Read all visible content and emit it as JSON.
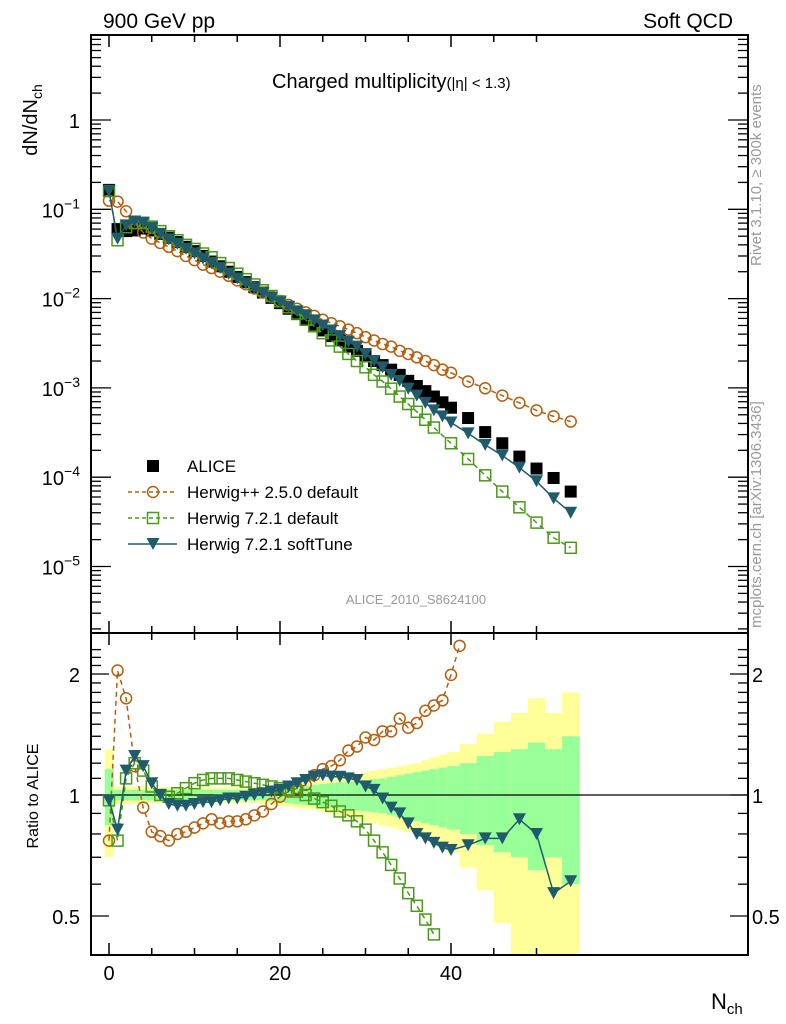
{
  "header": {
    "left_label": "900 GeV pp",
    "right_label": "Soft QCD"
  },
  "side_labels": {
    "rivet": "Rivet 3.1.10, ≥ 300k events",
    "mcplots": "mcplots.cern.ch [arXiv:1306.3436]"
  },
  "watermark": "ALICE_2010_S8624100",
  "chart_data": [
    {
      "type": "scatter",
      "panel": "main",
      "title": "Charged multiplicity",
      "title_suffix": "(|η| < 1.3)",
      "xlabel": "N_ch",
      "ylabel": "dN/dN_ch",
      "yscale": "log",
      "xlim": [
        -2,
        55
      ],
      "ylim": [
        2.5e-06,
        8
      ],
      "yticks": [
        {
          "value": 1,
          "label": "1"
        },
        {
          "value": 0.1,
          "label": "10^-1"
        },
        {
          "value": 0.01,
          "label": "10^-2"
        },
        {
          "value": 0.001,
          "label": "10^-3"
        },
        {
          "value": 0.0001,
          "label": "10^-4"
        },
        {
          "value": 1e-05,
          "label": "10^-5"
        }
      ],
      "legend_position": "lower-left",
      "series": [
        {
          "name": "ALICE",
          "marker": "filled-square",
          "line": "none",
          "color": "#000000",
          "x": [
            0,
            1,
            2,
            3,
            4,
            5,
            6,
            7,
            8,
            9,
            10,
            11,
            12,
            13,
            14,
            15,
            16,
            17,
            18,
            19,
            20,
            21,
            22,
            23,
            24,
            25,
            26,
            27,
            28,
            29,
            30,
            31,
            32,
            33,
            34,
            35,
            36,
            37,
            38,
            39,
            40,
            42,
            44,
            46,
            48,
            50,
            52,
            54
          ],
          "y": [
            0.165,
            0.06,
            0.057,
            0.058,
            0.061,
            0.058,
            0.053,
            0.048,
            0.043,
            0.038,
            0.034,
            0.03,
            0.026,
            0.023,
            0.02,
            0.0175,
            0.0153,
            0.0134,
            0.0117,
            0.0102,
            0.0089,
            0.0077,
            0.0067,
            0.0058,
            0.0051,
            0.0044,
            0.0038,
            0.0034,
            0.0029,
            0.0026,
            0.0023,
            0.002,
            0.0018,
            0.0016,
            0.0014,
            0.0012,
            0.00105,
            0.00092,
            0.0008,
            0.00069,
            0.0006,
            0.00046,
            0.00032,
            0.00024,
            0.00017,
            0.000125,
            9.8e-05,
            6.9e-05
          ]
        },
        {
          "name": "Herwig++ 2.5.0 default",
          "marker": "open-circle",
          "line": "dashed",
          "color": "#b35f0f",
          "x": [
            0,
            1,
            2,
            3,
            4,
            5,
            6,
            7,
            8,
            9,
            10,
            11,
            12,
            13,
            14,
            15,
            16,
            17,
            18,
            19,
            20,
            21,
            22,
            23,
            24,
            25,
            26,
            27,
            28,
            29,
            30,
            31,
            32,
            33,
            34,
            35,
            36,
            37,
            38,
            39,
            40,
            42,
            44,
            46,
            48,
            50,
            52,
            54
          ],
          "y": [
            0.125,
            0.122,
            0.095,
            0.07,
            0.055,
            0.047,
            0.042,
            0.038,
            0.034,
            0.03,
            0.027,
            0.024,
            0.022,
            0.02,
            0.018,
            0.016,
            0.0145,
            0.013,
            0.0117,
            0.0105,
            0.0094,
            0.0085,
            0.0077,
            0.007,
            0.0064,
            0.0058,
            0.0053,
            0.0049,
            0.0045,
            0.0041,
            0.0037,
            0.0034,
            0.0031,
            0.0029,
            0.0026,
            0.0024,
            0.0022,
            0.002,
            0.0018,
            0.0016,
            0.00148,
            0.00118,
            0.00099,
            0.00082,
            0.00068,
            0.00056,
            0.00048,
            0.00042
          ]
        },
        {
          "name": "Herwig 7.2.1 default",
          "marker": "open-square",
          "line": "dashed",
          "color": "#4a9a1a",
          "x": [
            0,
            1,
            2,
            3,
            4,
            5,
            6,
            7,
            8,
            9,
            10,
            11,
            12,
            13,
            14,
            15,
            16,
            17,
            18,
            19,
            20,
            21,
            22,
            23,
            24,
            25,
            26,
            27,
            28,
            29,
            30,
            31,
            32,
            33,
            34,
            35,
            36,
            37,
            38,
            40,
            42,
            44,
            46,
            48,
            50,
            52,
            54
          ],
          "y": [
            0.16,
            0.045,
            0.063,
            0.07,
            0.07,
            0.064,
            0.057,
            0.05,
            0.045,
            0.04,
            0.036,
            0.032,
            0.029,
            0.025,
            0.022,
            0.019,
            0.0165,
            0.0144,
            0.0124,
            0.0107,
            0.0093,
            0.008,
            0.0068,
            0.0058,
            0.0049,
            0.0041,
            0.0034,
            0.0029,
            0.0024,
            0.002,
            0.0017,
            0.0014,
            0.00118,
            0.00098,
            0.0008,
            0.00066,
            0.00054,
            0.00044,
            0.00036,
            0.00024,
            0.00016,
            0.000105,
            6.9e-05,
            4.6e-05,
            3.1e-05,
            2.1e-05,
            1.62e-05
          ]
        },
        {
          "name": "Herwig 7.2.1 softTune",
          "marker": "filled-triangle-down",
          "line": "solid",
          "color": "#1f5b6b",
          "x": [
            0,
            1,
            2,
            3,
            4,
            5,
            6,
            7,
            8,
            9,
            10,
            11,
            12,
            13,
            14,
            15,
            16,
            17,
            18,
            19,
            20,
            21,
            22,
            23,
            24,
            25,
            26,
            27,
            28,
            29,
            30,
            31,
            32,
            33,
            34,
            35,
            36,
            37,
            38,
            39,
            40,
            42,
            44,
            46,
            48,
            50,
            52,
            54
          ],
          "y": [
            0.16,
            0.047,
            0.066,
            0.073,
            0.071,
            0.062,
            0.053,
            0.046,
            0.041,
            0.036,
            0.032,
            0.028,
            0.025,
            0.022,
            0.019,
            0.0168,
            0.0148,
            0.013,
            0.0115,
            0.0102,
            0.0091,
            0.0081,
            0.0072,
            0.0065,
            0.0057,
            0.005,
            0.0044,
            0.0038,
            0.0033,
            0.0029,
            0.0024,
            0.002,
            0.0017,
            0.0014,
            0.0012,
            0.00098,
            0.00082,
            0.00068,
            0.00056,
            0.00048,
            0.00041,
            0.00031,
            0.00023,
            0.000175,
            0.000128,
            9e-05,
            5.8e-05,
            4e-05
          ]
        }
      ]
    },
    {
      "type": "scatter",
      "panel": "ratio",
      "xlabel": "N_ch",
      "ylabel": "Ratio to ALICE",
      "yscale": "log",
      "xlim": [
        -2,
        55
      ],
      "ylim": [
        0.37,
        2.35
      ],
      "xticks": [
        0,
        20,
        40
      ],
      "yticks": [
        {
          "value": 2,
          "label": "2"
        },
        {
          "value": 1,
          "label": "1"
        },
        {
          "value": 0.5,
          "label": "0.5"
        }
      ],
      "reference_line": 1,
      "bands": {
        "x_edges": [
          -0.5,
          0.5,
          1.5,
          2.5,
          3.5,
          4.5,
          5.5,
          6.5,
          7.5,
          8.5,
          9.5,
          10.5,
          11.5,
          12.5,
          13.5,
          14.5,
          15.5,
          16.5,
          17.5,
          18.5,
          19.5,
          20.5,
          21.5,
          22.5,
          23.5,
          24.5,
          25.5,
          26.5,
          27.5,
          28.5,
          29.5,
          30.5,
          31.5,
          32.5,
          33.5,
          34.5,
          35.5,
          36.5,
          37.5,
          38.5,
          39.5,
          41,
          43,
          45,
          47,
          49,
          51,
          53,
          55
        ],
        "stat_halfwidth": [
          0.16,
          0.03,
          0.03,
          0.03,
          0.03,
          0.03,
          0.03,
          0.03,
          0.03,
          0.03,
          0.03,
          0.03,
          0.03,
          0.03,
          0.03,
          0.03,
          0.03,
          0.03,
          0.03,
          0.035,
          0.04,
          0.045,
          0.05,
          0.055,
          0.06,
          0.065,
          0.07,
          0.075,
          0.08,
          0.085,
          0.09,
          0.095,
          0.1,
          0.11,
          0.12,
          0.13,
          0.14,
          0.15,
          0.16,
          0.17,
          0.18,
          0.2,
          0.25,
          0.28,
          0.3,
          0.35,
          0.3,
          0.4
        ],
        "total_halfwidth": [
          0.3,
          0.05,
          0.05,
          0.05,
          0.05,
          0.045,
          0.045,
          0.045,
          0.045,
          0.045,
          0.045,
          0.045,
          0.045,
          0.045,
          0.045,
          0.045,
          0.045,
          0.045,
          0.05,
          0.055,
          0.06,
          0.065,
          0.07,
          0.075,
          0.08,
          0.09,
          0.1,
          0.11,
          0.12,
          0.13,
          0.14,
          0.15,
          0.16,
          0.17,
          0.18,
          0.19,
          0.2,
          0.22,
          0.24,
          0.26,
          0.28,
          0.34,
          0.42,
          0.52,
          0.6,
          0.74,
          0.6,
          0.8
        ],
        "stat_color": "#99ff99",
        "total_color": "#ffff99"
      },
      "series": [
        {
          "name": "Herwig++ 2.5.0 default",
          "color": "#b35f0f",
          "x": [
            0,
            1,
            2,
            3,
            4,
            5,
            6,
            7,
            8,
            9,
            10,
            11,
            12,
            13,
            14,
            15,
            16,
            17,
            18,
            19,
            20,
            21,
            22,
            23,
            24,
            25,
            26,
            27,
            28,
            29,
            30,
            31,
            32,
            33,
            34,
            35,
            36,
            37,
            38,
            39,
            40,
            41
          ],
          "y": [
            0.77,
            2.04,
            1.74,
            1.18,
            0.93,
            0.81,
            0.79,
            0.77,
            0.8,
            0.81,
            0.83,
            0.85,
            0.87,
            0.85,
            0.86,
            0.86,
            0.87,
            0.89,
            0.91,
            0.95,
            0.99,
            1.02,
            1.04,
            1.06,
            1.12,
            1.16,
            1.18,
            1.22,
            1.29,
            1.32,
            1.39,
            1.37,
            1.44,
            1.44,
            1.55,
            1.47,
            1.51,
            1.62,
            1.67,
            1.72,
            1.99,
            2.35
          ]
        },
        {
          "name": "Herwig 7.2.1 default",
          "color": "#4a9a1a",
          "x": [
            0,
            1,
            2,
            3,
            4,
            5,
            6,
            7,
            8,
            9,
            10,
            11,
            12,
            13,
            14,
            15,
            16,
            17,
            18,
            19,
            20,
            21,
            22,
            23,
            24,
            25,
            26,
            27,
            28,
            29,
            30,
            31,
            32,
            33,
            34,
            35,
            36,
            37,
            38
          ],
          "y": [
            0.97,
            0.77,
            1.1,
            1.2,
            1.15,
            1.05,
            1.0,
            0.99,
            1.01,
            1.04,
            1.07,
            1.09,
            1.1,
            1.1,
            1.1,
            1.09,
            1.08,
            1.07,
            1.06,
            1.05,
            1.04,
            1.03,
            1.02,
            1.0,
            0.98,
            0.96,
            0.94,
            0.91,
            0.89,
            0.86,
            0.82,
            0.77,
            0.72,
            0.67,
            0.62,
            0.57,
            0.53,
            0.49,
            0.45
          ]
        },
        {
          "name": "Herwig 7.2.1 softTune",
          "color": "#1f5b6b",
          "x": [
            0,
            1,
            2,
            3,
            4,
            5,
            6,
            7,
            8,
            9,
            10,
            11,
            12,
            13,
            14,
            15,
            16,
            17,
            18,
            19,
            20,
            21,
            22,
            23,
            24,
            25,
            26,
            27,
            28,
            29,
            30,
            31,
            32,
            33,
            34,
            35,
            36,
            37,
            38,
            39,
            40,
            42,
            44,
            46,
            48,
            50,
            52,
            54
          ],
          "y": [
            0.97,
            0.82,
            1.15,
            1.25,
            1.18,
            1.07,
            1.0,
            0.95,
            0.94,
            0.94,
            0.95,
            0.96,
            0.96,
            0.97,
            0.98,
            0.98,
            0.99,
            1.0,
            1.01,
            1.02,
            1.03,
            1.05,
            1.07,
            1.09,
            1.11,
            1.12,
            1.11,
            1.11,
            1.1,
            1.09,
            1.05,
            1.03,
            0.98,
            0.93,
            0.9,
            0.85,
            0.8,
            0.78,
            0.76,
            0.74,
            0.73,
            0.75,
            0.78,
            0.78,
            0.87,
            0.8,
            0.57,
            0.61
          ]
        }
      ]
    }
  ]
}
